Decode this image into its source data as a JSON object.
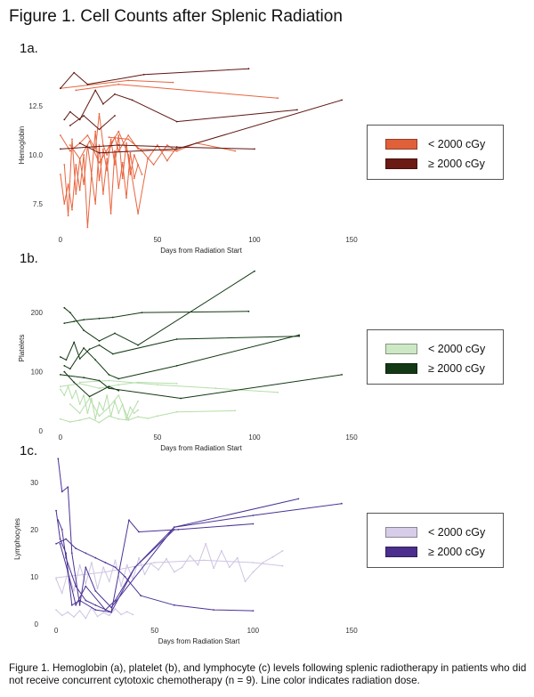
{
  "figure_title": "Figure 1. Cell Counts after Splenic Radiation",
  "caption": "Figure 1. Hemoglobin (a), platelet (b), and lymphocyte (c) levels following splenic radiotherapy in patients who did not receive concurrent cytotoxic chemotherapy (n = 9). Line color indicates radiation dose.",
  "chart_data": [
    {
      "panel": "1a.",
      "type": "line",
      "xlabel": "Days from Radiation Start",
      "ylabel": "Hemoglobin",
      "xlim": [
        -5,
        150
      ],
      "ylim": [
        6,
        15
      ],
      "xticks": [
        0,
        50,
        100,
        150
      ],
      "yticks": [
        7.5,
        10.0,
        12.5
      ],
      "ytick_labels": [
        "7.5",
        "10.0",
        "12.5"
      ],
      "grid": false,
      "legend": {
        "position": "right",
        "entries": [
          {
            "label": "< 2000 cGy",
            "color": "#e0603a"
          },
          {
            "label": "≥ 2000 cGy",
            "color": "#6b1a14"
          }
        ]
      },
      "series": [
        {
          "group": "< 2000 cGy",
          "color": "#e8653f",
          "x": [
            0,
            35,
            58
          ],
          "y": [
            13.4,
            13.8,
            13.7
          ]
        },
        {
          "group": "< 2000 cGy",
          "color": "#e8653f",
          "x": [
            8,
            30,
            112
          ],
          "y": [
            13.3,
            13.6,
            12.9
          ]
        },
        {
          "group": "< 2000 cGy",
          "color": "#e8653f",
          "x": [
            0,
            5,
            10,
            14,
            18,
            20,
            22,
            24,
            28,
            30,
            35,
            40,
            60,
            70,
            90
          ],
          "y": [
            11.0,
            10.2,
            10.6,
            11.0,
            10.3,
            12.1,
            10.5,
            10.0,
            10.9,
            10.2,
            11.0,
            10.3,
            10.2,
            10.6,
            10.2
          ]
        },
        {
          "group": "< 2000 cGy",
          "color": "#e8653f",
          "x": [
            0,
            2,
            4,
            6,
            8,
            10,
            12,
            14,
            16,
            18,
            20,
            22,
            24,
            26,
            28,
            30,
            32,
            34,
            36,
            38,
            40,
            42
          ],
          "y": [
            9.0,
            7.5,
            8.5,
            7.2,
            9.5,
            8.2,
            10.0,
            6.3,
            9.0,
            7.5,
            10.5,
            8.0,
            9.8,
            7.0,
            10.2,
            8.3,
            9.6,
            7.8,
            10.1,
            8.8,
            9.5,
            9.0
          ]
        },
        {
          "group": "< 2000 cGy",
          "color": "#e8653f",
          "x": [
            2,
            4,
            6,
            8,
            10,
            12,
            14,
            16,
            18,
            20,
            22,
            24,
            26,
            28,
            30,
            32,
            34,
            36,
            38,
            40
          ],
          "y": [
            9.5,
            6.9,
            10.8,
            8.0,
            9.8,
            8.5,
            10.5,
            9.0,
            11.2,
            8.7,
            10.3,
            9.2,
            10.8,
            9.5,
            11.0,
            8.8,
            10.6,
            9.0,
            10.0,
            9.5
          ]
        },
        {
          "group": "< 2000 cGy",
          "color": "#e8653f",
          "x": [
            5,
            10,
            15,
            20,
            25,
            30,
            35,
            40,
            45,
            50,
            55,
            60
          ],
          "y": [
            10.5,
            9.8,
            10.7,
            9.6,
            10.4,
            11.2,
            10.0,
            7.0,
            9.8,
            10.5,
            9.7,
            10.4
          ]
        },
        {
          "group": "< 2000 cGy",
          "color": "#e8653f",
          "x": [
            25,
            35,
            42,
            48,
            55,
            60
          ],
          "y": [
            10.9,
            10.8,
            10.2,
            9.5,
            10.5,
            10.2
          ]
        },
        {
          "group": "≥ 2000 cGy",
          "color": "#5e1712",
          "x": [
            0,
            7,
            14,
            43,
            97
          ],
          "y": [
            13.4,
            14.2,
            13.6,
            14.1,
            14.4
          ]
        },
        {
          "group": "≥ 2000 cGy",
          "color": "#5e1712",
          "x": [
            2,
            5,
            10,
            18,
            22,
            28,
            37,
            60,
            122
          ],
          "y": [
            11.8,
            12.2,
            11.8,
            13.3,
            12.6,
            13.1,
            12.8,
            11.7,
            12.3
          ]
        },
        {
          "group": "≥ 2000 cGy",
          "color": "#5e1712",
          "x": [
            5,
            12,
            20,
            28
          ],
          "y": [
            11.5,
            12.0,
            11.3,
            12.0
          ]
        },
        {
          "group": "≥ 2000 cGy",
          "color": "#5e1712",
          "x": [
            0,
            30,
            60,
            100
          ],
          "y": [
            10.3,
            10.5,
            10.4,
            10.3
          ]
        },
        {
          "group": "≥ 2000 cGy",
          "color": "#5e1712",
          "x": [
            10,
            20,
            60,
            145
          ],
          "y": [
            10.6,
            10.1,
            10.3,
            12.8
          ]
        }
      ]
    },
    {
      "panel": "1b.",
      "type": "line",
      "xlabel": "Days from Radiation Start",
      "ylabel": "Platelets",
      "xlim": [
        -5,
        150
      ],
      "ylim": [
        0,
        280
      ],
      "xticks": [
        0,
        50,
        100,
        150
      ],
      "yticks": [
        0,
        100,
        200
      ],
      "ytick_labels": [
        "0",
        "100",
        "200"
      ],
      "grid": false,
      "legend": {
        "position": "right",
        "entries": [
          {
            "label": "< 2000 cGy",
            "color": "#cde8c5"
          },
          {
            "label": "≥ 2000 cGy",
            "color": "#123814"
          }
        ]
      },
      "series": [
        {
          "group": "< 2000 cGy",
          "color": "#b5dea9",
          "x": [
            0,
            10,
            20,
            30,
            40,
            60
          ],
          "y": [
            75,
            80,
            72,
            78,
            82,
            80
          ]
        },
        {
          "group": "< 2000 cGy",
          "color": "#b5dea9",
          "x": [
            10,
            25,
            50,
            80,
            112
          ],
          "y": [
            82,
            85,
            78,
            72,
            65
          ]
        },
        {
          "group": "< 2000 cGy",
          "color": "#b5dea9",
          "x": [
            0,
            2,
            4,
            6,
            8,
            10,
            12,
            14,
            16,
            18,
            20,
            22,
            24,
            26,
            28,
            30,
            32,
            34,
            36,
            38,
            40
          ],
          "y": [
            70,
            60,
            75,
            55,
            68,
            45,
            60,
            30,
            55,
            20,
            48,
            35,
            60,
            25,
            50,
            30,
            45,
            20,
            40,
            30,
            35
          ]
        },
        {
          "group": "< 2000 cGy",
          "color": "#b5dea9",
          "x": [
            5,
            10,
            15,
            20,
            25,
            30,
            35,
            40
          ],
          "y": [
            45,
            30,
            55,
            25,
            40,
            60,
            20,
            50
          ]
        },
        {
          "group": "< 2000 cGy",
          "color": "#b5dea9",
          "x": [
            0,
            5,
            10,
            15,
            20,
            25,
            30,
            35,
            40,
            45,
            50,
            60,
            90
          ],
          "y": [
            20,
            15,
            18,
            22,
            14,
            25,
            20,
            18,
            24,
            21,
            25,
            32,
            34
          ]
        },
        {
          "group": "≥ 2000 cGy",
          "color": "#123814",
          "x": [
            2,
            7,
            12,
            20,
            27,
            42,
            97
          ],
          "y": [
            182,
            185,
            188,
            190,
            192,
            200,
            202
          ]
        },
        {
          "group": "≥ 2000 cGy",
          "color": "#123814",
          "x": [
            2,
            5,
            12,
            20,
            28,
            40,
            100
          ],
          "y": [
            208,
            200,
            170,
            152,
            165,
            145,
            270
          ]
        },
        {
          "group": "≥ 2000 cGy",
          "color": "#123814",
          "x": [
            0,
            3,
            7,
            10,
            15,
            20,
            27,
            60,
            123
          ],
          "y": [
            125,
            120,
            150,
            122,
            138,
            145,
            130,
            155,
            160
          ]
        },
        {
          "group": "≥ 2000 cGy",
          "color": "#123814",
          "x": [
            2,
            5,
            12,
            18,
            25,
            30,
            60,
            123
          ],
          "y": [
            110,
            105,
            140,
            120,
            95,
            88,
            110,
            162
          ]
        },
        {
          "group": "≥ 2000 cGy",
          "color": "#123814",
          "x": [
            2,
            7,
            15,
            25,
            30
          ],
          "y": [
            100,
            82,
            58,
            75,
            68
          ]
        },
        {
          "group": "≥ 2000 cGy",
          "color": "#123814",
          "x": [
            0,
            12,
            20,
            25,
            62,
            145
          ],
          "y": [
            95,
            90,
            85,
            72,
            55,
            95
          ]
        }
      ]
    },
    {
      "panel": "1c.",
      "type": "line",
      "xlabel": "Days from Radiation Start",
      "ylabel": "Lymphocytes",
      "xlim": [
        -5,
        150
      ],
      "ylim": [
        0,
        36
      ],
      "xticks": [
        0,
        50,
        100,
        150
      ],
      "yticks": [
        0,
        10,
        20,
        30
      ],
      "ytick_labels": [
        "0",
        "10",
        "20",
        "30"
      ],
      "grid": false,
      "legend": {
        "position": "right",
        "entries": [
          {
            "label": "< 2000 cGy",
            "color": "#d8cde8"
          },
          {
            "label": "≥ 2000 cGy",
            "color": "#4b2e8e"
          }
        ]
      },
      "series": [
        {
          "group": "< 2000 cGy",
          "color": "#cfc4e2",
          "x": [
            0,
            25,
            50,
            75,
            100,
            115
          ],
          "y": [
            9.8,
            11.0,
            13.0,
            13.5,
            13.0,
            12.3
          ]
        },
        {
          "group": "< 2000 cGy",
          "color": "#cfc4e2",
          "x": [
            0,
            3,
            6,
            9,
            12,
            15,
            18,
            21,
            24,
            27,
            30,
            33,
            36,
            39,
            42,
            45,
            48,
            52,
            56,
            60,
            64,
            68,
            72,
            76,
            80,
            84,
            88,
            92,
            96,
            100,
            105,
            110,
            115
          ],
          "y": [
            9.5,
            6.5,
            11.0,
            7.0,
            12.5,
            8.5,
            13.0,
            7.5,
            12.0,
            9.0,
            13.5,
            8.0,
            12.5,
            9.5,
            14.0,
            10.5,
            12.8,
            11.5,
            13.8,
            11.0,
            12.0,
            14.5,
            12.5,
            17.0,
            11.8,
            15.5,
            12.0,
            14.0,
            9.0,
            11.0,
            13.0,
            14.2,
            15.5
          ]
        },
        {
          "group": "< 2000 cGy",
          "color": "#cfc4e2",
          "x": [
            0,
            3,
            6,
            9,
            12,
            15,
            18,
            21,
            24,
            27,
            30,
            33,
            36,
            39
          ],
          "y": [
            3.0,
            1.8,
            2.5,
            1.5,
            2.8,
            1.2,
            3.5,
            1.6,
            2.4,
            1.8,
            3.2,
            2.0,
            2.6,
            2.0
          ]
        },
        {
          "group": "≥ 2000 cGy",
          "color": "#4b3296",
          "x": [
            0,
            5,
            10,
            15,
            20,
            25,
            30,
            35,
            43,
            60,
            80,
            100
          ],
          "y": [
            17,
            18,
            16,
            15,
            14,
            13,
            12,
            10,
            6,
            4,
            3,
            2.8
          ]
        },
        {
          "group": "≥ 2000 cGy",
          "color": "#4b3296",
          "x": [
            0,
            2,
            5,
            8,
            12,
            20,
            28,
            37,
            42,
            62,
            100
          ],
          "y": [
            24,
            18,
            15,
            4,
            5,
            3,
            2.5,
            22,
            19.5,
            20,
            21.2
          ]
        },
        {
          "group": "≥ 2000 cGy",
          "color": "#4b3296",
          "x": [
            2,
            6,
            10,
            15,
            25,
            30,
            40,
            60,
            123
          ],
          "y": [
            17,
            11,
            4,
            8,
            3,
            5,
            12,
            20.5,
            26.5
          ]
        },
        {
          "group": "≥ 2000 cGy",
          "color": "#4b3296",
          "x": [
            1,
            3,
            6,
            8,
            12,
            15,
            20,
            28,
            60,
            100,
            145
          ],
          "y": [
            35,
            28,
            29,
            15,
            4,
            12,
            7,
            3.5,
            20.5,
            23,
            25.5
          ]
        },
        {
          "group": "≥ 2000 cGy",
          "color": "#4b3296",
          "x": [
            1,
            3,
            5,
            10,
            15,
            20,
            28,
            40,
            60
          ],
          "y": [
            22,
            20,
            14,
            8,
            5,
            4,
            2.5,
            12,
            20
          ]
        }
      ]
    }
  ]
}
